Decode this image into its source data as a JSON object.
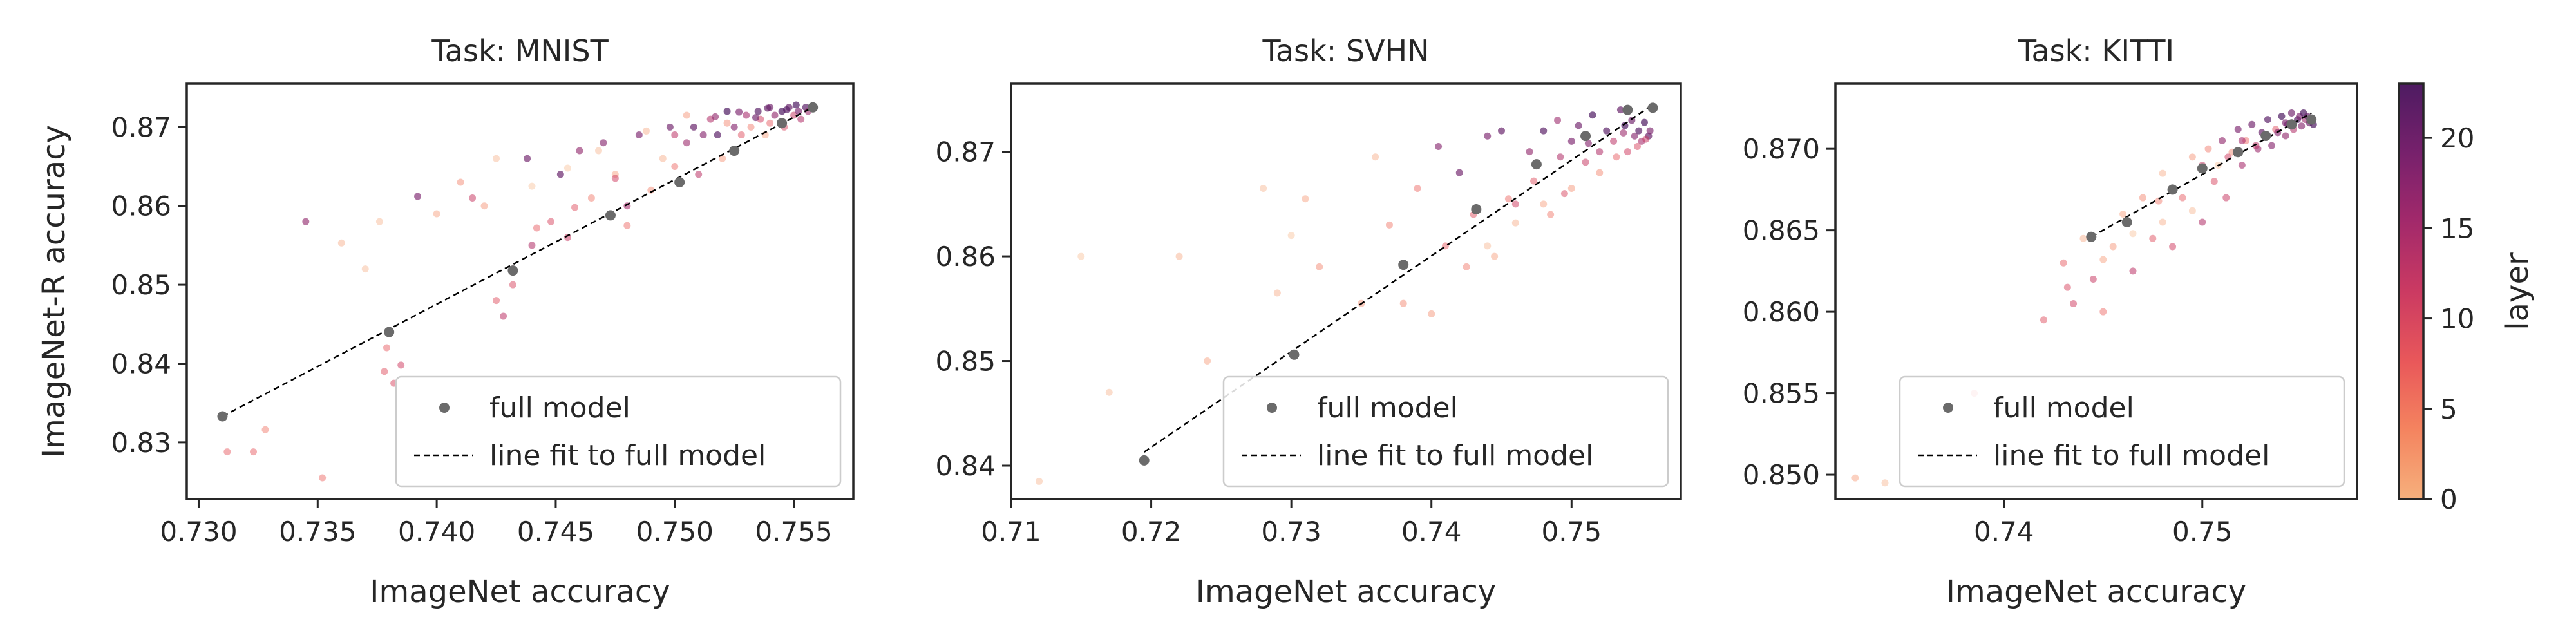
{
  "chart_data": [
    {
      "type": "scatter",
      "title": "Task: MNIST",
      "xlabel": "ImageNet accuracy",
      "ylabel": "ImageNet-R accuracy",
      "xlim": [
        0.7295,
        0.7575
      ],
      "ylim": [
        0.8228,
        0.8755
      ],
      "xticks": [
        "0.730",
        "0.735",
        "0.740",
        "0.745",
        "0.750",
        "0.755"
      ],
      "xtick_values": [
        0.73,
        0.735,
        0.74,
        0.745,
        0.75,
        0.755
      ],
      "yticks": [
        "0.83",
        "0.84",
        "0.85",
        "0.86",
        "0.87"
      ],
      "ytick_values": [
        0.83,
        0.84,
        0.85,
        0.86,
        0.87
      ],
      "legend": {
        "position": "lower-right",
        "entries": [
          "full model",
          "line fit to full model"
        ]
      },
      "full_model": {
        "x": [
          0.731,
          0.738,
          0.7432,
          0.7473,
          0.7502,
          0.7525,
          0.7545,
          0.7558
        ],
        "y": [
          0.8333,
          0.844,
          0.8518,
          0.8588,
          0.863,
          0.867,
          0.8705,
          0.8725
        ]
      },
      "fit_line": {
        "x": [
          0.731,
          0.7558
        ],
        "y": [
          0.8333,
          0.8725
        ]
      },
      "layer_points": {
        "x": [
          0.7312,
          0.7323,
          0.7328,
          0.7345,
          0.7352,
          0.736,
          0.737,
          0.7376,
          0.7378,
          0.7379,
          0.7382,
          0.7385,
          0.7392,
          0.74,
          0.741,
          0.7415,
          0.742,
          0.7425,
          0.7428,
          0.7432,
          0.7438,
          0.744,
          0.7448,
          0.7452,
          0.7455,
          0.746,
          0.7465,
          0.747,
          0.7475,
          0.748,
          0.7485,
          0.749,
          0.7495,
          0.7498,
          0.75,
          0.7505,
          0.7508,
          0.751,
          0.7515,
          0.7518,
          0.752,
          0.7522,
          0.7525,
          0.7528,
          0.753,
          0.7532,
          0.7535,
          0.7536,
          0.7538,
          0.754,
          0.754,
          0.7542,
          0.7545,
          0.7546,
          0.7548,
          0.755,
          0.7552,
          0.7553,
          0.7555,
          0.7556,
          0.7522,
          0.7505,
          0.7488,
          0.7468,
          0.7455,
          0.744,
          0.7425,
          0.748,
          0.7512,
          0.7534,
          0.7547,
          0.7551,
          0.7539,
          0.7527,
          0.7517,
          0.75,
          0.7475,
          0.7458,
          0.7442,
          0.7432
        ],
        "y": [
          0.8288,
          0.8288,
          0.8316,
          0.858,
          0.8255,
          0.8553,
          0.852,
          0.858,
          0.839,
          0.842,
          0.8375,
          0.8398,
          0.8612,
          0.859,
          0.863,
          0.861,
          0.86,
          0.848,
          0.846,
          0.852,
          0.866,
          0.855,
          0.858,
          0.864,
          0.856,
          0.867,
          0.861,
          0.868,
          0.864,
          0.86,
          0.869,
          0.862,
          0.866,
          0.87,
          0.865,
          0.868,
          0.87,
          0.864,
          0.871,
          0.869,
          0.866,
          0.872,
          0.87,
          0.869,
          0.8715,
          0.87,
          0.872,
          0.871,
          0.869,
          0.8725,
          0.8705,
          0.8715,
          0.872,
          0.87,
          0.8725,
          0.8715,
          0.872,
          0.871,
          0.8725,
          0.872,
          0.8705,
          0.8715,
          0.8695,
          0.867,
          0.8648,
          0.8625,
          0.866,
          0.8575,
          0.869,
          0.8712,
          0.8722,
          0.8728,
          0.8724,
          0.8719,
          0.8713,
          0.869,
          0.8635,
          0.8598,
          0.8572,
          0.85
        ],
        "layer": [
          8,
          8,
          6,
          17,
          7,
          2,
          1,
          1,
          9,
          8,
          10,
          11,
          19,
          3,
          5,
          12,
          4,
          9,
          13,
          11,
          20,
          14,
          10,
          21,
          12,
          17,
          6,
          18,
          3,
          15,
          19,
          5,
          2,
          20,
          7,
          16,
          21,
          13,
          14,
          22,
          4,
          23,
          18,
          9,
          15,
          6,
          22,
          11,
          3,
          20,
          8,
          17,
          23,
          10,
          21,
          12,
          19,
          14,
          22,
          16,
          5,
          4,
          2,
          1,
          0,
          0,
          1,
          7,
          18,
          20,
          22,
          23,
          21,
          19,
          17,
          13,
          11,
          9,
          8,
          10
        ]
      }
    },
    {
      "type": "scatter",
      "title": "Task: SVHN",
      "xlabel": "ImageNet accuracy",
      "ylabel": "",
      "xlim": [
        0.71,
        0.7578
      ],
      "ylim": [
        0.8368,
        0.8765
      ],
      "xticks": [
        "0.71",
        "0.72",
        "0.73",
        "0.74",
        "0.75"
      ],
      "xtick_values": [
        0.71,
        0.72,
        0.73,
        0.74,
        0.75
      ],
      "yticks": [
        "0.84",
        "0.85",
        "0.86",
        "0.87"
      ],
      "ytick_values": [
        0.84,
        0.85,
        0.86,
        0.87
      ],
      "legend": {
        "position": "lower-right",
        "entries": [
          "full model",
          "line fit to full model"
        ]
      },
      "full_model": {
        "x": [
          0.7195,
          0.7302,
          0.738,
          0.7432,
          0.7475,
          0.751,
          0.754,
          0.7558
        ],
        "y": [
          0.8405,
          0.8506,
          0.8592,
          0.8645,
          0.8688,
          0.8715,
          0.874,
          0.8742
        ]
      },
      "fit_line": {
        "x": [
          0.7195,
          0.7558
        ],
        "y": [
          0.8413,
          0.8745
        ]
      },
      "layer_points": {
        "x": [
          0.712,
          0.715,
          0.717,
          0.722,
          0.724,
          0.728,
          0.729,
          0.73,
          0.731,
          0.732,
          0.735,
          0.736,
          0.737,
          0.738,
          0.739,
          0.74,
          0.7405,
          0.741,
          0.742,
          0.743,
          0.744,
          0.7445,
          0.745,
          0.746,
          0.747,
          0.748,
          0.7485,
          0.749,
          0.7495,
          0.75,
          0.7505,
          0.751,
          0.7515,
          0.752,
          0.7525,
          0.753,
          0.7535,
          0.7538,
          0.754,
          0.7543,
          0.7545,
          0.7548,
          0.755,
          0.7552,
          0.7555,
          0.7556,
          0.752,
          0.75,
          0.748,
          0.746,
          0.744,
          0.7425,
          0.7532,
          0.7547,
          0.7553,
          0.7537,
          0.7512,
          0.7492,
          0.7473,
          0.7455
        ],
        "y": [
          0.8385,
          0.86,
          0.847,
          0.86,
          0.85,
          0.8665,
          0.8565,
          0.862,
          0.8655,
          0.859,
          0.8555,
          0.8695,
          0.863,
          0.8555,
          0.8665,
          0.8545,
          0.8705,
          0.861,
          0.868,
          0.864,
          0.8715,
          0.86,
          0.872,
          0.865,
          0.87,
          0.872,
          0.864,
          0.873,
          0.866,
          0.871,
          0.8725,
          0.869,
          0.8735,
          0.87,
          0.872,
          0.871,
          0.874,
          0.8725,
          0.87,
          0.873,
          0.8715,
          0.872,
          0.871,
          0.8728,
          0.8715,
          0.872,
          0.868,
          0.8665,
          0.865,
          0.8632,
          0.861,
          0.859,
          0.8695,
          0.8705,
          0.8712,
          0.8718,
          0.8708,
          0.8695,
          0.8672,
          0.8655
        ],
        "layer": [
          1,
          0,
          1,
          2,
          3,
          1,
          2,
          0,
          3,
          5,
          4,
          2,
          6,
          5,
          7,
          4,
          18,
          8,
          20,
          9,
          19,
          3,
          21,
          11,
          17,
          22,
          6,
          16,
          10,
          19,
          20,
          12,
          23,
          14,
          22,
          13,
          21,
          23,
          11,
          20,
          18,
          22,
          15,
          23,
          21,
          19,
          5,
          4,
          3,
          2,
          1,
          6,
          8,
          10,
          12,
          16,
          18,
          14,
          9,
          7
        ]
      }
    },
    {
      "type": "scatter",
      "title": "Task: KITTI",
      "xlabel": "ImageNet accuracy",
      "ylabel": "",
      "xlim": [
        0.7315,
        0.7578
      ],
      "ylim": [
        0.8485,
        0.874
      ],
      "xticks": [
        "0.74",
        "0.75"
      ],
      "xtick_values": [
        0.74,
        0.75
      ],
      "yticks": [
        "0.850",
        "0.855",
        "0.860",
        "0.865",
        "0.870"
      ],
      "ytick_values": [
        0.85,
        0.855,
        0.86,
        0.865,
        0.87
      ],
      "legend": {
        "position": "lower-right",
        "entries": [
          "full model",
          "line fit to full model"
        ]
      },
      "full_model": {
        "x": [
          0.7444,
          0.7462,
          0.7485,
          0.75,
          0.7518,
          0.7532,
          0.7545,
          0.7555
        ],
        "y": [
          0.8646,
          0.8655,
          0.8675,
          0.8688,
          0.8698,
          0.8708,
          0.8715,
          0.8718
        ]
      },
      "fit_line": {
        "x": [
          0.7444,
          0.7555
        ],
        "y": [
          0.8646,
          0.8722
        ]
      },
      "layer_points": {
        "x": [
          0.7325,
          0.734,
          0.7385,
          0.742,
          0.743,
          0.7432,
          0.7435,
          0.744,
          0.7445,
          0.745,
          0.7455,
          0.746,
          0.7465,
          0.747,
          0.7475,
          0.748,
          0.7485,
          0.749,
          0.7495,
          0.75,
          0.7503,
          0.7506,
          0.751,
          0.7512,
          0.7515,
          0.7518,
          0.752,
          0.7522,
          0.7525,
          0.7528,
          0.753,
          0.7533,
          0.7535,
          0.7537,
          0.754,
          0.7542,
          0.7543,
          0.7545,
          0.7546,
          0.7548,
          0.7549,
          0.755,
          0.7551,
          0.7552,
          0.7553,
          0.7554,
          0.7555,
          0.7556,
          0.7508,
          0.7495,
          0.748,
          0.7465,
          0.745,
          0.7478,
          0.75,
          0.752,
          0.7538,
          0.7542,
          0.7527,
          0.7513
        ],
        "y": [
          0.8498,
          0.8495,
          0.855,
          0.8595,
          0.863,
          0.8615,
          0.8605,
          0.8645,
          0.862,
          0.86,
          0.864,
          0.866,
          0.8625,
          0.867,
          0.8645,
          0.8685,
          0.864,
          0.867,
          0.8695,
          0.8655,
          0.87,
          0.868,
          0.8705,
          0.867,
          0.8698,
          0.8712,
          0.869,
          0.8705,
          0.8715,
          0.87,
          0.871,
          0.8718,
          0.8702,
          0.8712,
          0.872,
          0.8708,
          0.8715,
          0.8722,
          0.8712,
          0.8718,
          0.872,
          0.8714,
          0.8722,
          0.8718,
          0.872,
          0.8716,
          0.8718,
          0.8715,
          0.869,
          0.8662,
          0.8655,
          0.8648,
          0.8632,
          0.8668,
          0.869,
          0.8705,
          0.871,
          0.8716,
          0.8702,
          0.8695
        ],
        "layer": [
          3,
          1,
          7,
          9,
          8,
          10,
          11,
          2,
          12,
          7,
          4,
          3,
          13,
          5,
          9,
          2,
          11,
          8,
          4,
          14,
          6,
          10,
          17,
          12,
          5,
          19,
          15,
          7,
          20,
          16,
          21,
          22,
          18,
          9,
          23,
          17,
          21,
          20,
          14,
          22,
          19,
          18,
          23,
          16,
          21,
          20,
          22,
          23,
          0,
          1,
          2,
          0,
          3,
          6,
          12,
          15,
          18,
          19,
          13,
          11
        ]
      }
    }
  ],
  "colorbar": {
    "label": "layer",
    "range": [
      0,
      23
    ],
    "ticks": [
      "0",
      "5",
      "10",
      "15",
      "20"
    ],
    "tick_values": [
      0,
      5,
      10,
      15,
      20
    ],
    "colormap": [
      "#f6b07c",
      "#f4835f",
      "#e9585a",
      "#cb3a62",
      "#a2296b",
      "#78216c",
      "#4e1b62"
    ]
  },
  "colors": {
    "full_model": "#6b6b6b",
    "fit_line": "#000000",
    "frame": "#262626"
  }
}
